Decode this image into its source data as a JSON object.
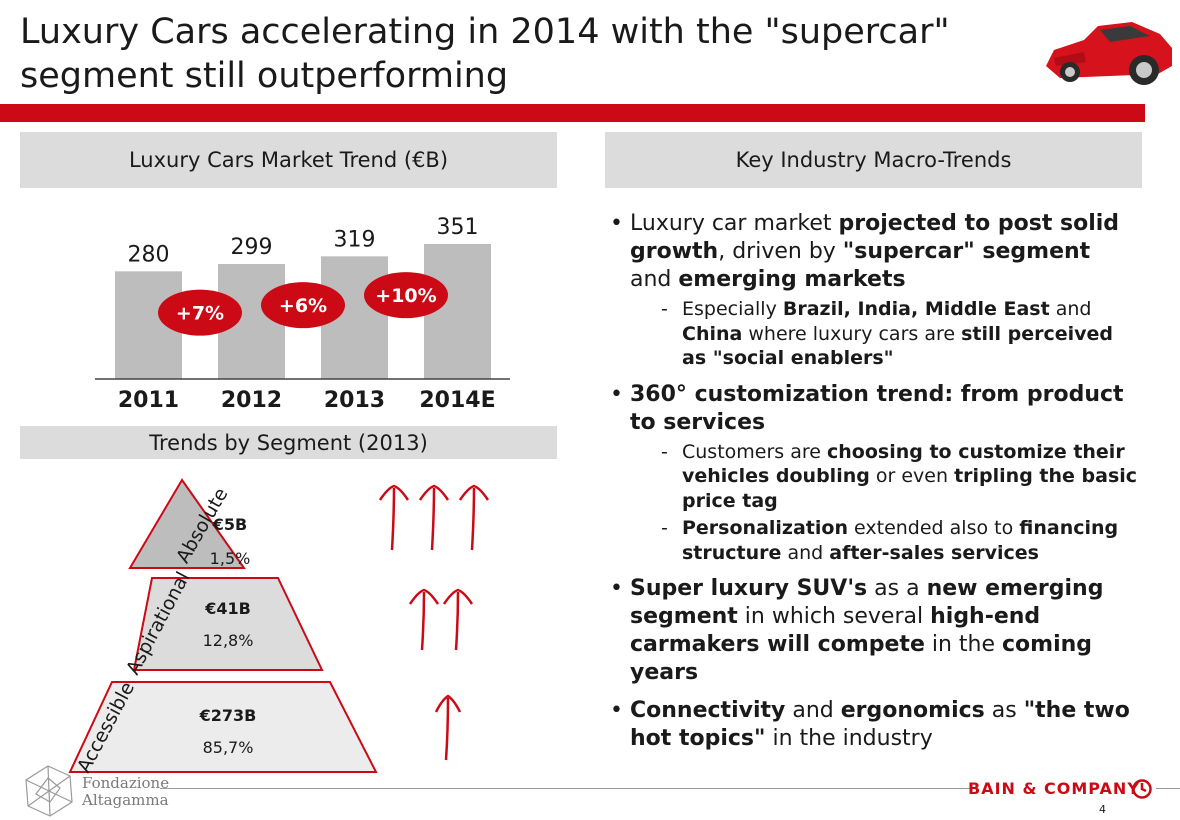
{
  "title": {
    "line1": "Luxury Cars accelerating in 2014 with the \"supercar\"",
    "line2": "segment still outperforming"
  },
  "panels": {
    "market_trend_header": "Luxury Cars Market Trend (€B)",
    "macro_trends_header": "Key Industry Macro-Trends",
    "segments_header": "Trends by Segment (2013)"
  },
  "chart_data": {
    "type": "bar",
    "title": "Luxury Cars Market Trend (€B)",
    "categories": [
      "2011",
      "2012",
      "2013",
      "2014E"
    ],
    "values": [
      280,
      299,
      319,
      351
    ],
    "growth_labels": [
      "+7%",
      "+6%",
      "+10%"
    ],
    "ylim": [
      0,
      351
    ],
    "bar_color": "#bdbdbd",
    "growth_color": "#cc0a16"
  },
  "segments": [
    {
      "name": "Absolute",
      "value": "€5B",
      "share": "1,5%",
      "arrows": 3
    },
    {
      "name": "Aspirational",
      "value": "€41B",
      "share": "12,8%",
      "arrows": 2
    },
    {
      "name": "Accessible",
      "value": "€273B",
      "share": "85,7%",
      "arrows": 1
    }
  ],
  "footer": {
    "partner_line1": "Fondazione",
    "partner_line2": "Altagamma",
    "brand": "BAIN & COMPANY",
    "page": "4"
  },
  "colors": {
    "accent": "#cc0a16",
    "header_bg": "#dcdcdc"
  }
}
